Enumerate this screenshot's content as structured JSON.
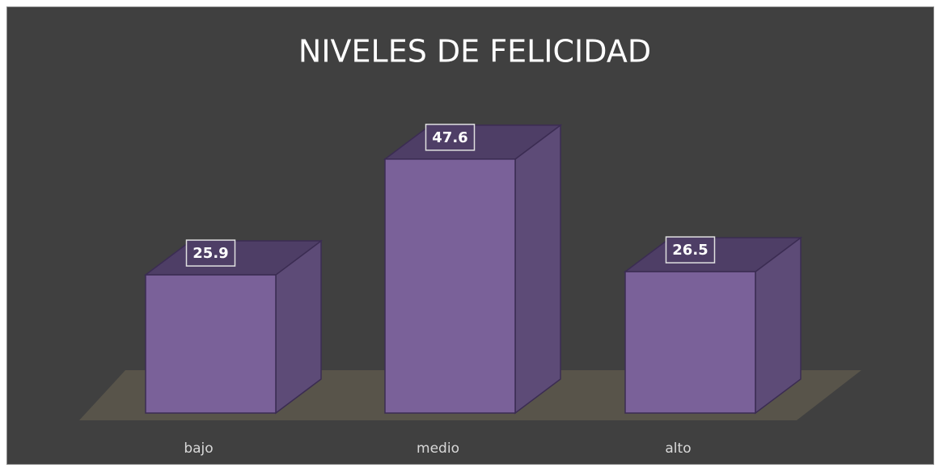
{
  "chart_data": {
    "type": "bar3d",
    "title": "NIVELES DE FELICIDAD",
    "categories": [
      "bajo",
      "medio",
      "alto"
    ],
    "values": [
      25.9,
      47.6,
      26.5
    ],
    "color": "#7a6199"
  }
}
